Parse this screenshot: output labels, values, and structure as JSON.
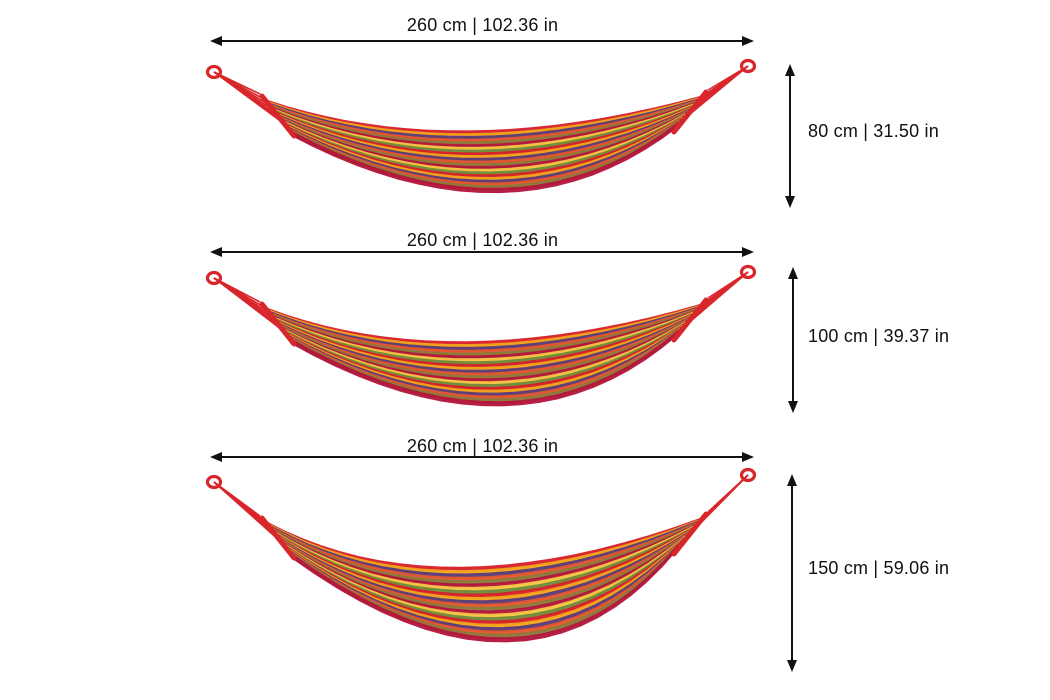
{
  "diagram": {
    "hammocks": [
      {
        "id": "small",
        "width_label": "260 cm | 102.36 in",
        "height_label": "80 cm | 31.50 in"
      },
      {
        "id": "medium",
        "width_label": "260 cm | 102.36 in",
        "height_label": "100 cm | 39.37 in"
      },
      {
        "id": "large",
        "width_label": "260 cm | 102.36 in",
        "height_label": "150 cm | 59.06 in"
      }
    ],
    "stripe_colors": [
      "#d6202a",
      "#f2a51b",
      "#5a3a7a",
      "#e4572e",
      "#8a7a3a",
      "#b3163b",
      "#f6c744",
      "#6e8a3a"
    ],
    "cord_color": "#d8262b",
    "arrow_color": "#111111"
  }
}
